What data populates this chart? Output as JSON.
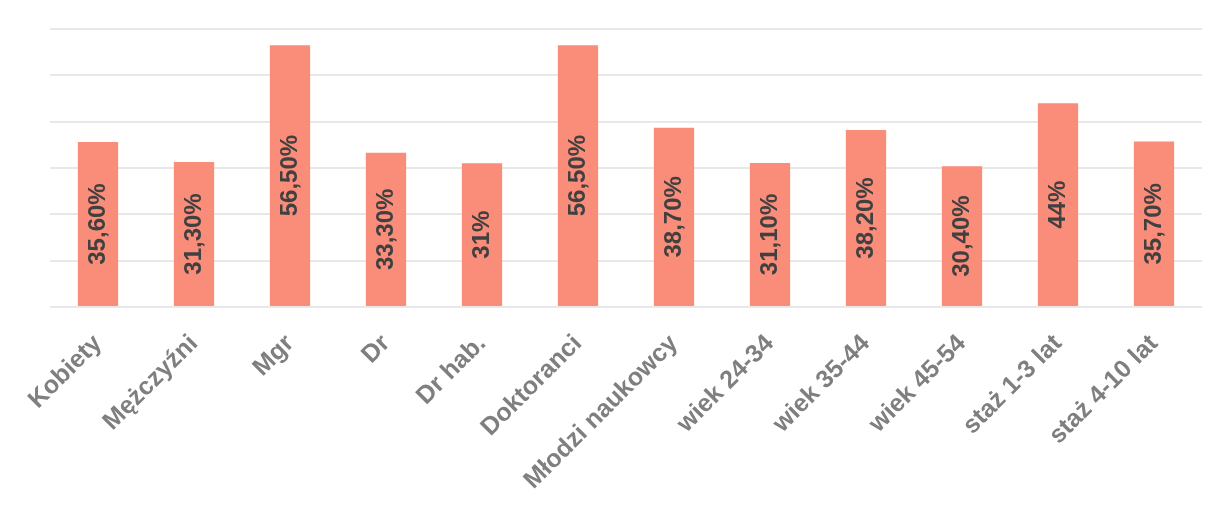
{
  "chart_data": {
    "type": "bar",
    "categories": [
      "Kobiety",
      "Mężczyźni",
      "Mgr",
      "Dr",
      "Dr hab.",
      "Doktoranci",
      "Młodzi naukowcy",
      "wiek 24-34",
      "wiek 35-44",
      "wiek 45-54",
      "staż 1-3 lat",
      "staż 4-10 lat"
    ],
    "values": [
      35.6,
      31.3,
      56.5,
      33.3,
      31,
      56.5,
      38.7,
      31.1,
      38.2,
      30.4,
      44,
      35.7
    ],
    "value_labels": [
      "35,60%",
      "31,30%",
      "56,50%",
      "33,30%",
      "31%",
      "56,50%",
      "38,70%",
      "31,10%",
      "38,20%",
      "30,40%",
      "44%",
      "35,70%"
    ],
    "color": "#fa8c7a",
    "ylim": [
      0,
      60
    ],
    "grid": "y",
    "tick_labels": "x"
  }
}
